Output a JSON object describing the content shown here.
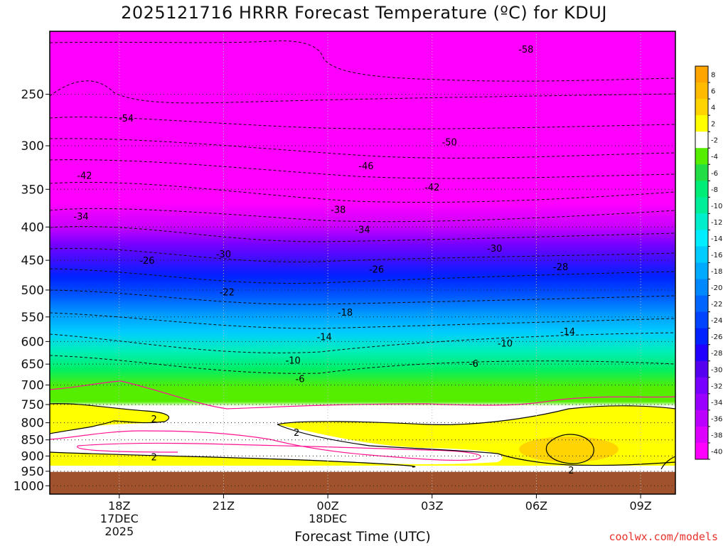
{
  "chart_data": {
    "type": "heatmap",
    "title": "2025121716 HRRR Forecast Temperature (ºC) for KDUJ",
    "xlabel": "Forecast Time (UTC)",
    "ylabel": "",
    "x_ticks": [
      {
        "label": "18Z",
        "sub": [
          "17DEC",
          "2025"
        ],
        "hour": 2
      },
      {
        "label": "21Z",
        "sub": [],
        "hour": 5
      },
      {
        "label": "00Z",
        "sub": [
          "18DEC"
        ],
        "hour": 8
      },
      {
        "label": "03Z",
        "sub": [],
        "hour": 11
      },
      {
        "label": "06Z",
        "sub": [],
        "hour": 14
      },
      {
        "label": "09Z",
        "sub": [],
        "hour": 17
      }
    ],
    "x_range_hours": [
      0,
      18
    ],
    "y_ticks": [
      250,
      300,
      350,
      400,
      450,
      500,
      550,
      600,
      650,
      700,
      750,
      800,
      850,
      900,
      950,
      1000
    ],
    "y_range_hpa": [
      200,
      1030
    ],
    "y_scale": "log",
    "ground_level_hpa": 952,
    "colorbar_levels": [
      "8",
      "6",
      "4",
      "2",
      "-2",
      "-4",
      "-6",
      "-8",
      "-10",
      "-12",
      "-14",
      "-16",
      "-18",
      "-20",
      "-22",
      "-24",
      "-26",
      "-28",
      "-30",
      "-32",
      "-34",
      "-36",
      "-38",
      "-40"
    ],
    "colorbar_colors": [
      "#ffa500",
      "#ffbb00",
      "#ffd400",
      "#ffff00",
      "#ffffff",
      "#55ee00",
      "#22dd44",
      "#00ee77",
      "#00ee99",
      "#00eecc",
      "#00eeff",
      "#00ccff",
      "#00aaff",
      "#0088ff",
      "#0066ff",
      "#0044ff",
      "#0022ff",
      "#2200ff",
      "#5500ee",
      "#7700ff",
      "#9900ff",
      "#bb00ff",
      "#dd00ff",
      "#ff00ff"
    ],
    "contour_labels": [
      {
        "text": "-58",
        "hour": 13.7,
        "hpa": 213
      },
      {
        "text": "-54",
        "hour": 2.2,
        "hpa": 272
      },
      {
        "text": "-50",
        "hour": 11.5,
        "hpa": 296
      },
      {
        "text": "-46",
        "hour": 9.1,
        "hpa": 322
      },
      {
        "text": "-42",
        "hour": 11.0,
        "hpa": 347
      },
      {
        "text": "-42",
        "hour": 1.0,
        "hpa": 333
      },
      {
        "text": "-38",
        "hour": 8.3,
        "hpa": 376
      },
      {
        "text": "-34",
        "hour": 9.0,
        "hpa": 403
      },
      {
        "text": "-34",
        "hour": 0.9,
        "hpa": 385
      },
      {
        "text": "-30",
        "hour": 5.0,
        "hpa": 440
      },
      {
        "text": "-30",
        "hour": 12.8,
        "hpa": 431
      },
      {
        "text": "-26",
        "hour": 2.8,
        "hpa": 450
      },
      {
        "text": "-26",
        "hour": 9.4,
        "hpa": 464
      },
      {
        "text": "-28",
        "hour": 14.7,
        "hpa": 460
      },
      {
        "text": "-22",
        "hour": 5.1,
        "hpa": 503
      },
      {
        "text": "-18",
        "hour": 8.5,
        "hpa": 541
      },
      {
        "text": "-14",
        "hour": 7.9,
        "hpa": 590
      },
      {
        "text": "-14",
        "hour": 14.9,
        "hpa": 579
      },
      {
        "text": "-10",
        "hour": 7.0,
        "hpa": 641
      },
      {
        "text": "-10",
        "hour": 13.1,
        "hpa": 603
      },
      {
        "text": "-6",
        "hour": 7.2,
        "hpa": 684
      },
      {
        "text": "-6",
        "hour": 12.2,
        "hpa": 648
      },
      {
        "text": "2",
        "hour": 3.0,
        "hpa": 789
      },
      {
        "text": "2",
        "hour": 7.1,
        "hpa": 827
      },
      {
        "text": "2",
        "hour": 3.0,
        "hpa": 903
      },
      {
        "text": "2",
        "hour": 15.0,
        "hpa": 945
      }
    ]
  },
  "credit": "coolwx.com/models"
}
